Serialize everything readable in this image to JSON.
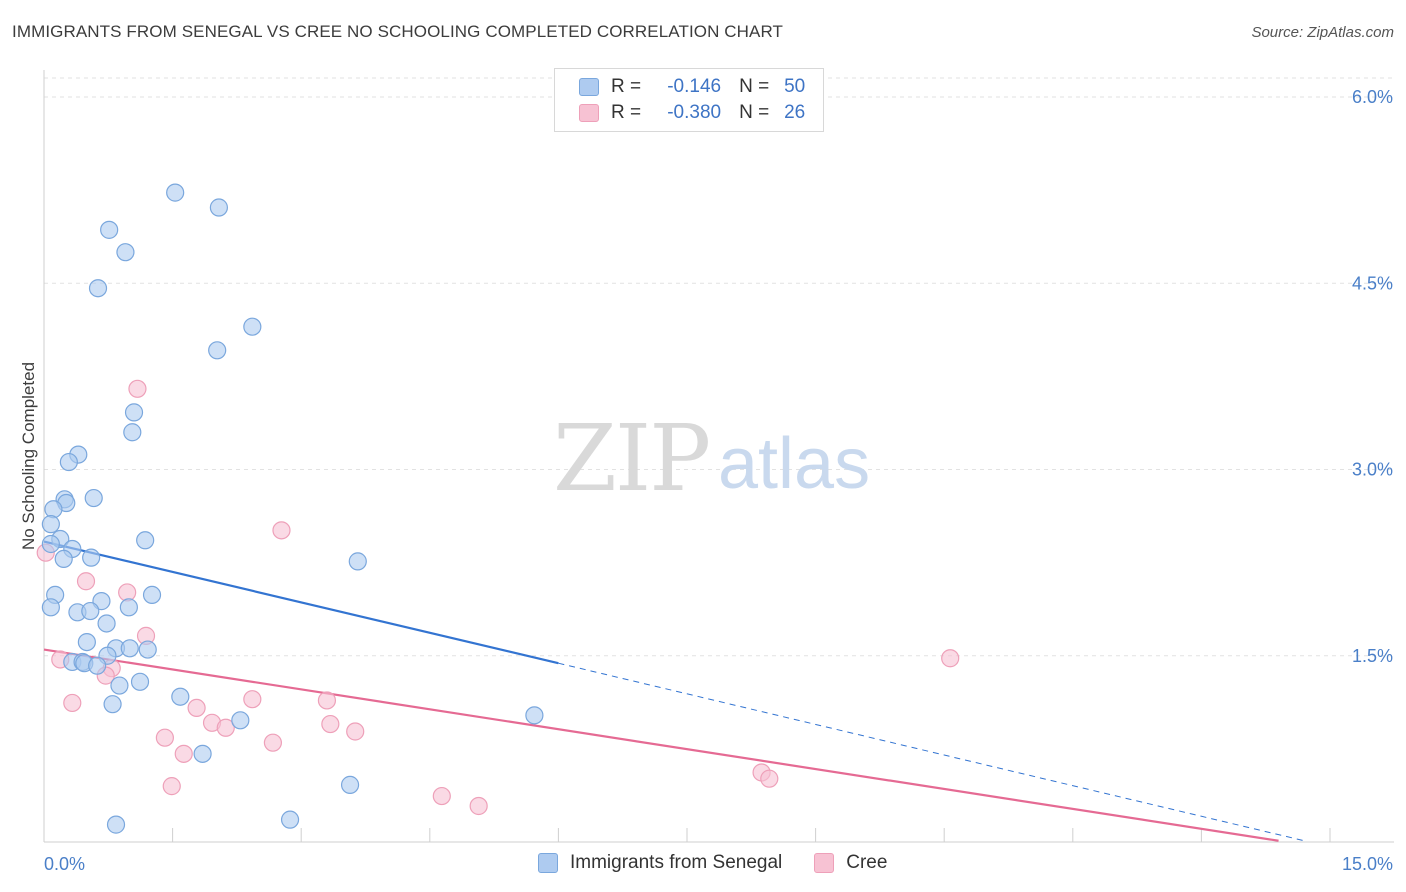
{
  "title": "IMMIGRANTS FROM SENEGAL VS CREE NO SCHOOLING COMPLETED CORRELATION CHART",
  "source": "Source: ZipAtlas.com",
  "watermark": {
    "zip": "ZIP",
    "atlas": "atlas"
  },
  "legend": {
    "senegal": {
      "r_label": "R =",
      "r_value": "-0.146",
      "n_label": "N =",
      "n_value": "50"
    },
    "cree": {
      "r_label": "R =",
      "r_value": "-0.380",
      "n_label": "N =",
      "n_value": "26"
    }
  },
  "bottom_legend": {
    "senegal": "Immigrants from Senegal",
    "cree": "Cree"
  },
  "colors": {
    "senegal_fill": "#aecbf0",
    "senegal_stroke": "#7aa7dd",
    "senegal_line": "#3374d1",
    "cree_fill": "#f7c2d3",
    "cree_stroke": "#eea0b9",
    "cree_line": "#e56a93",
    "grid": "#e2e2e2",
    "tick_text": "#4a7fc8"
  },
  "chart_data": {
    "type": "scatter",
    "title": "IMMIGRANTS FROM SENEGAL VS CREE NO SCHOOLING COMPLETED CORRELATION CHART",
    "xlabel": "",
    "ylabel": "No Schooling Completed",
    "xlim": [
      0,
      15
    ],
    "ylim": [
      0,
      6.3
    ],
    "x_tick_labels": [
      {
        "value": 0,
        "label": "0.0%"
      },
      {
        "value": 15,
        "label": "15.0%"
      }
    ],
    "y_tick_labels": [
      {
        "value": 1.5,
        "label": "1.5%"
      },
      {
        "value": 3.0,
        "label": "3.0%"
      },
      {
        "value": 4.5,
        "label": "4.5%"
      },
      {
        "value": 6.0,
        "label": "6.0%"
      }
    ],
    "series": [
      {
        "name": "Immigrants from Senegal",
        "points": [
          [
            1.53,
            5.23
          ],
          [
            2.04,
            5.11
          ],
          [
            0.76,
            4.93
          ],
          [
            0.95,
            4.75
          ],
          [
            0.63,
            4.46
          ],
          [
            2.43,
            4.15
          ],
          [
            2.02,
            3.96
          ],
          [
            1.05,
            3.46
          ],
          [
            1.03,
            3.3
          ],
          [
            0.4,
            3.12
          ],
          [
            0.29,
            3.06
          ],
          [
            0.24,
            2.76
          ],
          [
            0.58,
            2.77
          ],
          [
            0.26,
            2.73
          ],
          [
            0.11,
            2.68
          ],
          [
            0.08,
            2.56
          ],
          [
            0.19,
            2.44
          ],
          [
            1.18,
            2.43
          ],
          [
            0.33,
            2.36
          ],
          [
            0.23,
            2.28
          ],
          [
            0.55,
            2.29
          ],
          [
            3.66,
            2.26
          ],
          [
            0.13,
            1.99
          ],
          [
            1.26,
            1.99
          ],
          [
            0.67,
            1.94
          ],
          [
            0.08,
            1.89
          ],
          [
            0.99,
            1.89
          ],
          [
            0.39,
            1.85
          ],
          [
            0.54,
            1.86
          ],
          [
            0.73,
            1.76
          ],
          [
            0.5,
            1.61
          ],
          [
            0.84,
            1.56
          ],
          [
            1.0,
            1.56
          ],
          [
            1.21,
            1.55
          ],
          [
            0.74,
            1.5
          ],
          [
            0.33,
            1.45
          ],
          [
            0.45,
            1.45
          ],
          [
            0.47,
            1.44
          ],
          [
            0.62,
            1.42
          ],
          [
            1.12,
            1.29
          ],
          [
            0.88,
            1.26
          ],
          [
            1.59,
            1.17
          ],
          [
            0.8,
            1.11
          ],
          [
            5.72,
            1.02
          ],
          [
            2.29,
            0.98
          ],
          [
            1.85,
            0.71
          ],
          [
            3.57,
            0.46
          ],
          [
            2.87,
            0.18
          ],
          [
            0.84,
            0.14
          ],
          [
            0.08,
            2.4
          ]
        ],
        "trend": {
          "x": [
            0.0,
            6.0
          ],
          "y": [
            2.42,
            1.44
          ]
        },
        "trend_dashed": {
          "x": [
            6.0,
            14.7
          ],
          "y": [
            1.44,
            0.01
          ]
        }
      },
      {
        "name": "Cree",
        "points": [
          [
            1.09,
            3.65
          ],
          [
            2.77,
            2.51
          ],
          [
            0.02,
            2.33
          ],
          [
            0.49,
            2.1
          ],
          [
            0.97,
            2.01
          ],
          [
            1.19,
            1.66
          ],
          [
            10.57,
            1.48
          ],
          [
            0.19,
            1.47
          ],
          [
            0.79,
            1.4
          ],
          [
            0.72,
            1.34
          ],
          [
            2.43,
            1.15
          ],
          [
            3.3,
            1.14
          ],
          [
            0.33,
            1.12
          ],
          [
            1.78,
            1.08
          ],
          [
            1.96,
            0.96
          ],
          [
            3.34,
            0.95
          ],
          [
            2.12,
            0.92
          ],
          [
            3.63,
            0.89
          ],
          [
            1.41,
            0.84
          ],
          [
            2.67,
            0.8
          ],
          [
            1.63,
            0.71
          ],
          [
            8.37,
            0.56
          ],
          [
            8.46,
            0.51
          ],
          [
            1.49,
            0.45
          ],
          [
            4.64,
            0.37
          ],
          [
            5.07,
            0.29
          ]
        ],
        "trend": {
          "x": [
            0.0,
            14.4
          ],
          "y": [
            1.55,
            0.01
          ]
        }
      }
    ]
  }
}
